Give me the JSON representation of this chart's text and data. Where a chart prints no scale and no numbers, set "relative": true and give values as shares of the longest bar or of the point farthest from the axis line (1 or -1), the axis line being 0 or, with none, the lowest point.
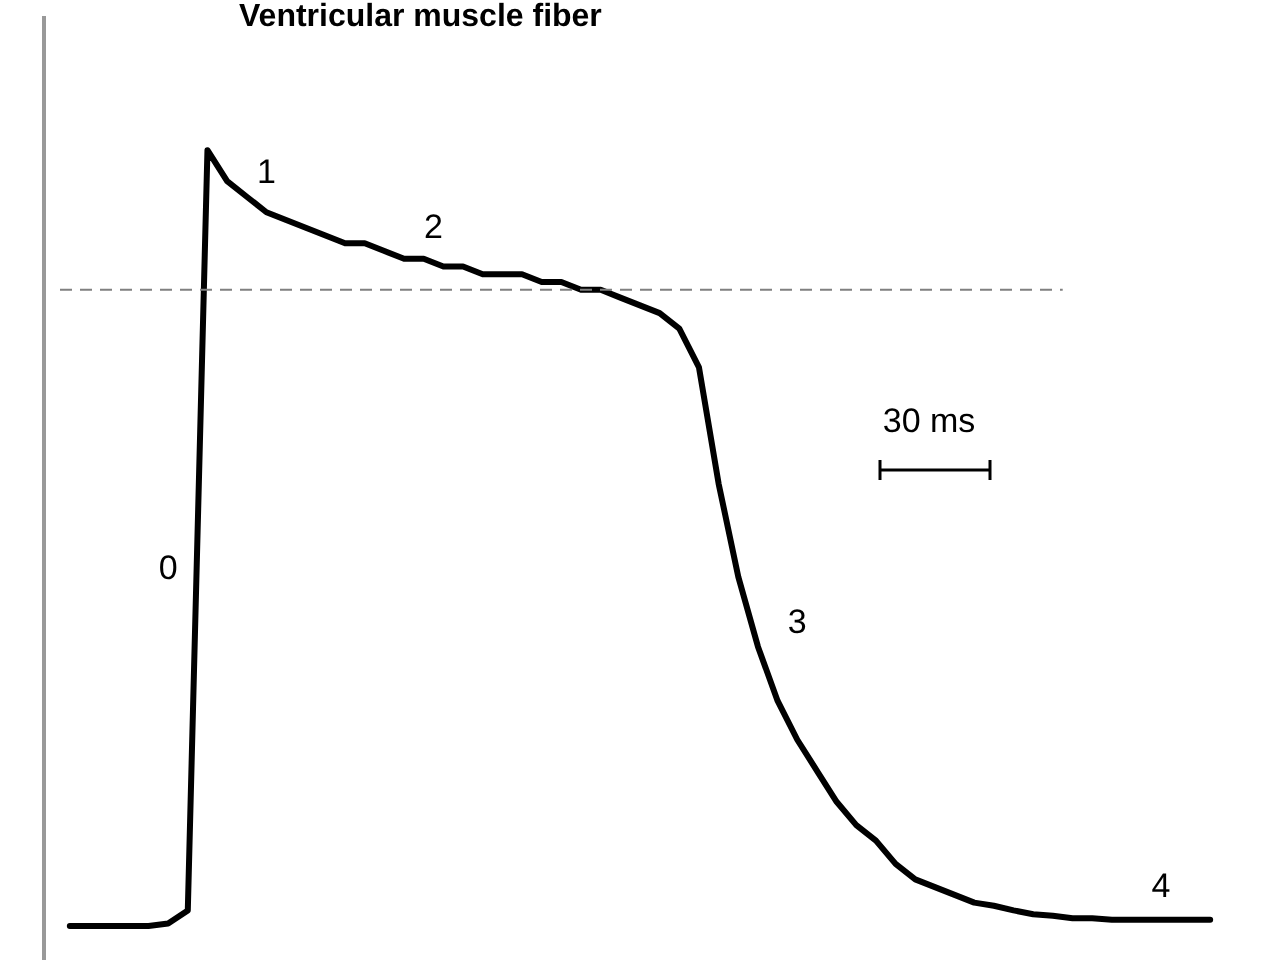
{
  "chart_data": {
    "type": "line",
    "title": "Ventricular muscle fiber",
    "relative": true,
    "color": "#000000",
    "categories": [
      null,
      null,
      null,
      null,
      null,
      null,
      null,
      null,
      null,
      null,
      null,
      null,
      null,
      null,
      null,
      null,
      null,
      null,
      null,
      null,
      null,
      null,
      null,
      null,
      null,
      null,
      null,
      null,
      null,
      null,
      null,
      null,
      null,
      null,
      null,
      null,
      null,
      null,
      null,
      null,
      null,
      null,
      null,
      null,
      null,
      null,
      null,
      null,
      null,
      null,
      null,
      null,
      null,
      null,
      null,
      null,
      null,
      null,
      null
    ],
    "values": [
      0,
      0,
      0,
      0,
      0,
      0.003,
      0.02,
      1,
      0.96,
      0.94,
      0.92,
      0.91,
      0.9,
      0.89,
      0.88,
      0.88,
      0.87,
      0.86,
      0.86,
      0.85,
      0.85,
      0.84,
      0.84,
      0.84,
      0.83,
      0.83,
      0.82,
      0.82,
      0.81,
      0.8,
      0.79,
      0.77,
      0.72,
      0.57,
      0.45,
      0.36,
      0.29,
      0.24,
      0.2,
      0.16,
      0.13,
      0.11,
      0.08,
      0.06,
      0.05,
      0.04,
      0.03,
      0.026,
      0.02,
      0.015,
      0.013,
      0.01,
      0.01,
      0.008,
      0.008,
      0.008,
      0.008,
      0.008,
      0.008
    ],
    "ref_lines": [
      {
        "axis": "y",
        "value": 0.82,
        "color": "#808080",
        "line_style": "dashed"
      }
    ],
    "annotations": [
      "0",
      "1",
      "2",
      "3",
      "4",
      "30 ms"
    ],
    "grid": false,
    "tick_labels": false,
    "marker": "none",
    "line_style": "solid"
  }
}
